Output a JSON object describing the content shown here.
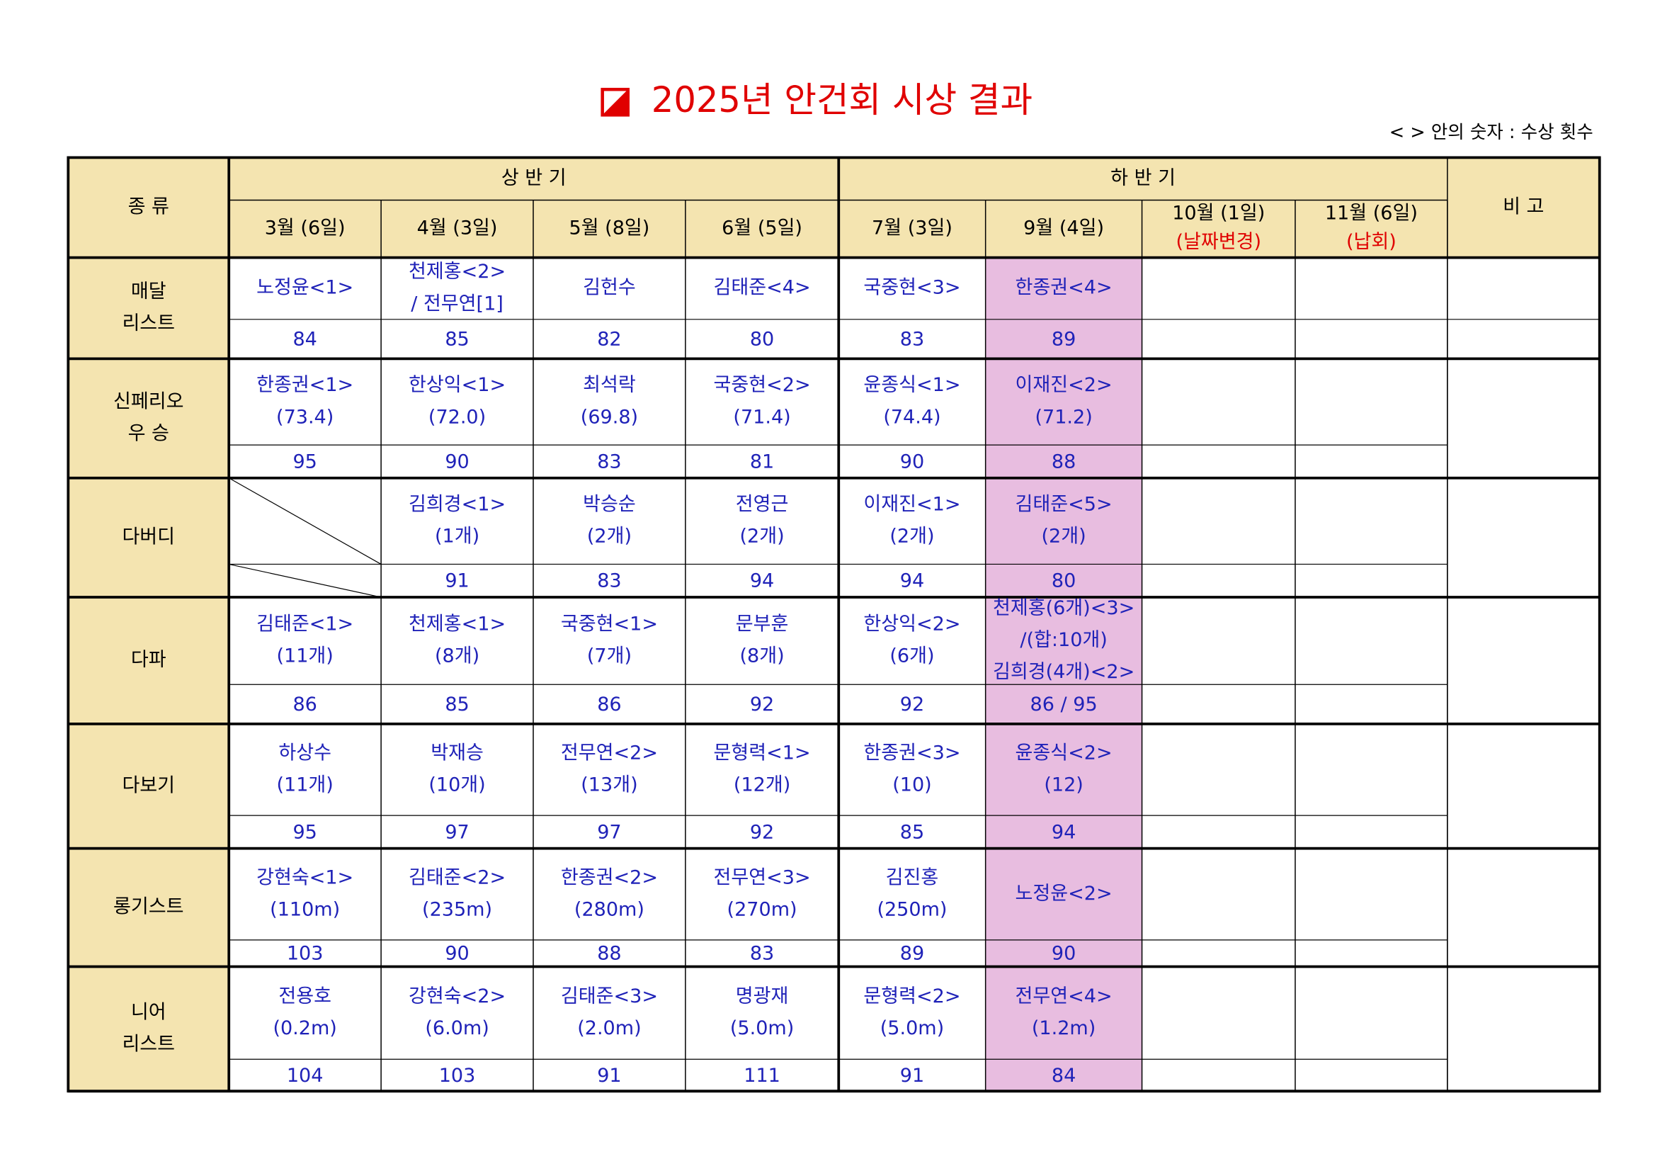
{
  "title": "2025년 안건회 시상 결과",
  "note": "< > 안의 숫자 : 수상 횟수",
  "header": {
    "kind": "종 류",
    "first_half": "상 반 기",
    "second_half": "하 반 기",
    "remark": "비 고",
    "months": [
      {
        "label": "3월 (6일)"
      },
      {
        "label": "4월 (3일)"
      },
      {
        "label": "5월 (8일)"
      },
      {
        "label": "6월 (5일)"
      },
      {
        "label": "7월 (3일)"
      },
      {
        "label": "9월 (4일)"
      },
      {
        "label": "10월 (1일)",
        "note": "(날짜변경)"
      },
      {
        "label": "11월 (6일)",
        "note": "(납회)"
      }
    ]
  },
  "rows": [
    {
      "name": [
        "매달",
        "리스트"
      ],
      "cells": [
        {
          "lines": [
            "노정윤<1>"
          ],
          "score": 84
        },
        {
          "lines": [
            "천제홍<2>",
            "/ 전무연[1]"
          ],
          "score": 85
        },
        {
          "lines": [
            "김헌수"
          ],
          "score": 82
        },
        {
          "lines": [
            "김태준<4>"
          ],
          "score": 80
        },
        {
          "lines": [
            "국중현<3>"
          ],
          "score": 83
        },
        {
          "lines": [
            "한종권<4>"
          ],
          "score": 89
        }
      ]
    },
    {
      "name": [
        "신페리오",
        "우 승"
      ],
      "cells": [
        {
          "lines": [
            "한종권<1>",
            "(73.4)"
          ],
          "score": 95
        },
        {
          "lines": [
            "한상익<1>",
            "(72.0)"
          ],
          "score": 90
        },
        {
          "lines": [
            "최석락",
            "(69.8)"
          ],
          "score": 83
        },
        {
          "lines": [
            "국중현<2>",
            "(71.4)"
          ],
          "score": 81
        },
        {
          "lines": [
            "윤종식<1>",
            "(74.4)"
          ],
          "score": 90
        },
        {
          "lines": [
            "이재진<2>",
            "(71.2)"
          ],
          "score": 88
        }
      ]
    },
    {
      "name": [
        "다버디"
      ],
      "cells": [
        null,
        {
          "lines": [
            "김희경<1>",
            "(1개)"
          ],
          "score": 91
        },
        {
          "lines": [
            "박승순",
            "(2개)"
          ],
          "score": 83
        },
        {
          "lines": [
            "전영근",
            "(2개)"
          ],
          "score": 94
        },
        {
          "lines": [
            "이재진<1>",
            "(2개)"
          ],
          "score": 94
        },
        {
          "lines": [
            "김태준<5>",
            "(2개)"
          ],
          "score": 80
        }
      ]
    },
    {
      "name": [
        "다파"
      ],
      "cells": [
        {
          "lines": [
            "김태준<1>",
            "(11개)"
          ],
          "score": 86
        },
        {
          "lines": [
            "천제홍<1>",
            "(8개)"
          ],
          "score": 85
        },
        {
          "lines": [
            "국중현<1>",
            "(7개)"
          ],
          "score": 86
        },
        {
          "lines": [
            "문부훈",
            "(8개)"
          ],
          "score": 92
        },
        {
          "lines": [
            "한상익<2>",
            "(6개)"
          ],
          "score": 92
        },
        {
          "lines": [
            "천제홍(6개)<3>",
            "/(합:10개)",
            "김희경(4개)<2>"
          ],
          "score": "86 / 95"
        }
      ]
    },
    {
      "name": [
        "다보기"
      ],
      "cells": [
        {
          "lines": [
            "하상수",
            "(11개)"
          ],
          "score": 95
        },
        {
          "lines": [
            "박재승",
            "(10개)"
          ],
          "score": 97
        },
        {
          "lines": [
            "전무연<2>",
            "(13개)"
          ],
          "score": 97
        },
        {
          "lines": [
            "문형력<1>",
            "(12개)"
          ],
          "score": 92
        },
        {
          "lines": [
            "한종권<3>",
            "(10)"
          ],
          "score": 85
        },
        {
          "lines": [
            "윤종식<2>",
            "(12)"
          ],
          "score": 94
        }
      ]
    },
    {
      "name": [
        "롱기스트"
      ],
      "cells": [
        {
          "lines": [
            "강현숙<1>",
            "(110m)"
          ],
          "score": 103
        },
        {
          "lines": [
            "김태준<2>",
            "(235m)"
          ],
          "score": 90
        },
        {
          "lines": [
            "한종권<2>",
            "(280m)"
          ],
          "score": 88
        },
        {
          "lines": [
            "전무연<3>",
            "(270m)"
          ],
          "score": 83
        },
        {
          "lines": [
            "김진홍",
            "(250m)"
          ],
          "score": 89
        },
        {
          "lines": [
            "노정윤<2>"
          ],
          "score": 90
        }
      ]
    },
    {
      "name": [
        "니어",
        "리스트"
      ],
      "cells": [
        {
          "lines": [
            "전용호",
            "(0.2m)"
          ],
          "score": 104
        },
        {
          "lines": [
            "강현숙<2>",
            "(6.0m)"
          ],
          "score": 103
        },
        {
          "lines": [
            "김태준<3>",
            "(2.0m)"
          ],
          "score": 91
        },
        {
          "lines": [
            "명광재",
            "(5.0m)"
          ],
          "score": 111
        },
        {
          "lines": [
            "문형력<2>",
            "(5.0m)"
          ],
          "score": 91
        },
        {
          "lines": [
            "전무연<4>",
            "(1.2m)"
          ],
          "score": 84
        }
      ]
    }
  ]
}
